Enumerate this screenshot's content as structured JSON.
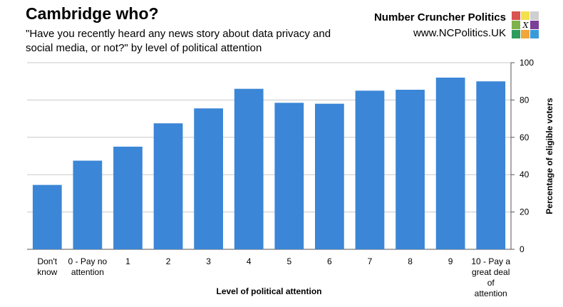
{
  "header": {
    "title": "Cambridge who?",
    "subtitle": "\"Have you recently heard any news story about data privacy and social media, or not?\" by level of political attention"
  },
  "brand": {
    "name": "Number Cruncher Politics",
    "url": "www.NCPolitics.UK",
    "logo_letter": "X",
    "logo_colors": [
      "#d9534f",
      "#f2e14c",
      "#cfcfcf",
      "#7fb24a",
      "#ffffff",
      "#7b3f98",
      "#2f9b5e",
      "#f0a63a",
      "#3a9ad9"
    ]
  },
  "colors": {
    "bar": "#3b86d6",
    "grid": "#c8c8c8",
    "axis": "#555555"
  },
  "chart_data": {
    "type": "bar",
    "xlabel": "Level of political attention",
    "ylabel": "Percentage of eligible voters",
    "ylim": [
      0,
      100
    ],
    "yticks": [
      0,
      20,
      40,
      60,
      80,
      100
    ],
    "y_axis_side": "right",
    "grid": true,
    "categories": [
      [
        "Don't",
        "know"
      ],
      [
        "0 - Pay no",
        "attention"
      ],
      [
        "1"
      ],
      [
        "2"
      ],
      [
        "3"
      ],
      [
        "4"
      ],
      [
        "5"
      ],
      [
        "6"
      ],
      [
        "7"
      ],
      [
        "8"
      ],
      [
        "9"
      ],
      [
        "10 - Pay a",
        "great deal",
        "of",
        "attention"
      ]
    ],
    "values": [
      34.5,
      47.5,
      55,
      67.5,
      75.5,
      86,
      78.5,
      78,
      85,
      85.5,
      92,
      90
    ]
  }
}
